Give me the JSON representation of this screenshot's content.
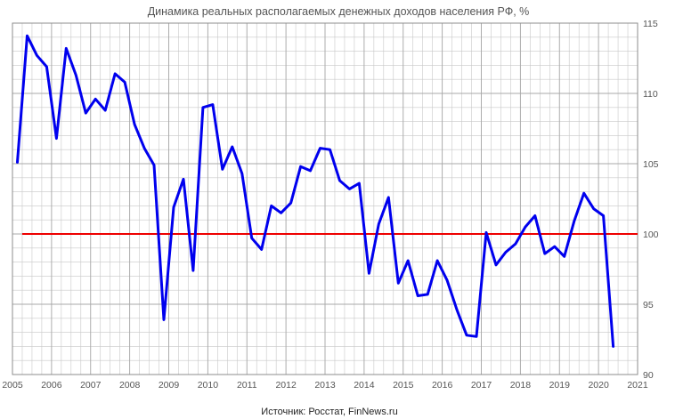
{
  "chart_data": {
    "type": "line",
    "title": "Динамика реальных располагаемых денежных доходов населения РФ, %",
    "source": "Источник: Росстат, FinNews.ru",
    "xlabel": "",
    "ylabel": "",
    "xlim": [
      2005,
      2021
    ],
    "ylim": [
      90,
      115
    ],
    "x_ticks": [
      "2005",
      "2006",
      "2007",
      "2008",
      "2009",
      "2010",
      "2011",
      "2012",
      "2013",
      "2014",
      "2015",
      "2016",
      "2017",
      "2018",
      "2019",
      "2020",
      "2021"
    ],
    "y_ticks": [
      "90",
      "95",
      "100",
      "105",
      "110",
      "115"
    ],
    "y_axis_side": "right",
    "grid": true,
    "legend": "none",
    "colors": {
      "series": "#0000ee",
      "reference": "#ee0000",
      "grid": "#c8c8c8"
    },
    "reference_line": {
      "y": 100,
      "x_start": 2005.25,
      "x_end": 2021
    },
    "series": [
      {
        "x": [
          2005.125,
          2005.375,
          2005.625,
          2005.875,
          2006.125,
          2006.375,
          2006.625,
          2006.875,
          2007.125,
          2007.375,
          2007.625,
          2007.875,
          2008.125,
          2008.375,
          2008.625,
          2008.875,
          2009.125,
          2009.375,
          2009.625,
          2009.875,
          2010.125,
          2010.375,
          2010.625,
          2010.875,
          2011.125,
          2011.375,
          2011.625,
          2011.875,
          2012.125,
          2012.375,
          2012.625,
          2012.875,
          2013.125,
          2013.375,
          2013.625,
          2013.875,
          2014.125,
          2014.375,
          2014.625,
          2014.875,
          2015.125,
          2015.375,
          2015.625,
          2015.875,
          2016.125,
          2016.375,
          2016.625,
          2016.875,
          2017.125,
          2017.375,
          2017.625,
          2017.875,
          2018.125,
          2018.375,
          2018.625,
          2018.875,
          2019.125,
          2019.375,
          2019.625,
          2019.875,
          2020.125,
          2020.375
        ],
        "values": [
          105.1,
          114.1,
          112.7,
          111.9,
          106.8,
          113.2,
          111.3,
          108.6,
          109.6,
          108.8,
          111.4,
          110.8,
          107.8,
          106.1,
          104.9,
          93.9,
          101.9,
          103.9,
          97.4,
          109.0,
          109.2,
          104.6,
          106.2,
          104.3,
          99.7,
          98.9,
          102.0,
          101.5,
          102.2,
          104.8,
          104.5,
          106.1,
          106.0,
          103.8,
          103.2,
          103.6,
          97.2,
          100.7,
          102.6,
          96.5,
          98.1,
          95.6,
          95.7,
          98.1,
          96.7,
          94.6,
          92.8,
          92.7,
          100.1,
          97.8,
          98.7,
          99.3,
          100.5,
          101.3,
          98.6,
          99.1,
          98.4,
          100.9,
          102.9,
          101.8,
          101.3,
          92.0
        ]
      }
    ]
  }
}
